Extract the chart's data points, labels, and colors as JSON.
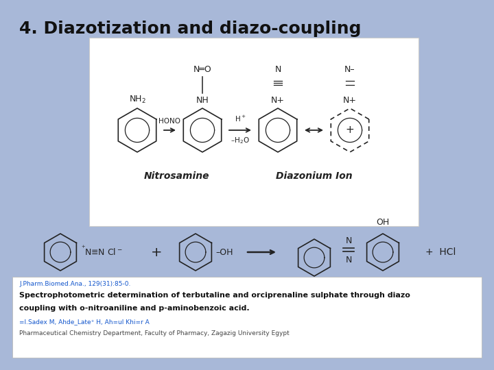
{
  "bg_color": "#a8b8d8",
  "title": "4. Diazotization and diazo-coupling",
  "title_fontsize": 18,
  "ref_line1": "J.Pharm.Biomed.Ana., 129(31):85-0.",
  "ref_line2": "Spectrophotometric determination of terbutaline and orciprenaline sulphate through diazo",
  "ref_line3": "coupling with o-nitroaniline and p-aminobenzoic acid.",
  "ref_line4": "=l.Sadex M, Ahde_Late⁺ H, Ah=ul Khi=r A",
  "ref_line5": "Pharmaceutical Chemistry Department, Faculty of Pharmacy, Zagazig University Egypt"
}
